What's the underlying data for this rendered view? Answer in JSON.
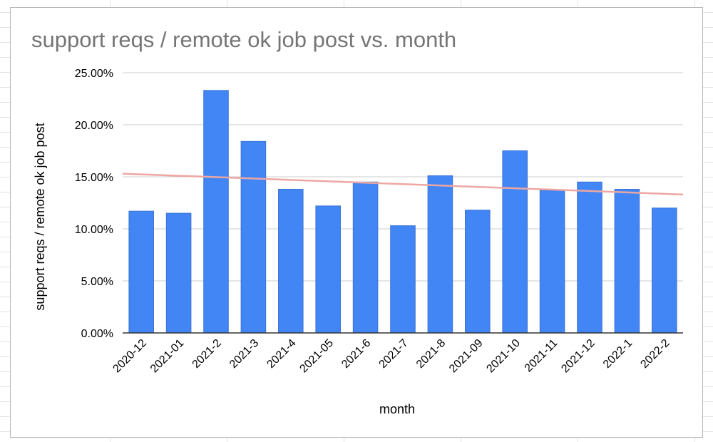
{
  "chart_data": {
    "type": "bar",
    "title": "support reqs / remote ok job post vs. month",
    "xlabel": "month",
    "ylabel": "support reqs / remote ok job post",
    "categories": [
      "2020-12",
      "2021-01",
      "2021-2",
      "2021-3",
      "2021-4",
      "2021-05",
      "2021-6",
      "2021-7",
      "2021-8",
      "2021-09",
      "2021-10",
      "2021-11",
      "2021-12",
      "2022-1",
      "2022-2"
    ],
    "series": [
      {
        "values": [
          11.7,
          11.5,
          23.3,
          18.4,
          13.8,
          12.2,
          14.5,
          10.3,
          15.1,
          11.8,
          17.5,
          13.7,
          14.5,
          13.8,
          12.0
        ]
      }
    ],
    "trendline": {
      "type": "linear",
      "start": 15.3,
      "end": 13.3
    },
    "ylim": [
      0,
      25
    ],
    "yticks": [
      "0.00%",
      "5.00%",
      "10.00%",
      "15.00%",
      "20.00%",
      "25.00%"
    ],
    "grid": true,
    "colors": {
      "bar": "#4285f4",
      "bar_border": "#3b75d6",
      "trendline": "#eda7a3",
      "grid": "#cccccc",
      "axis": "#333333",
      "title": "#757575"
    }
  }
}
